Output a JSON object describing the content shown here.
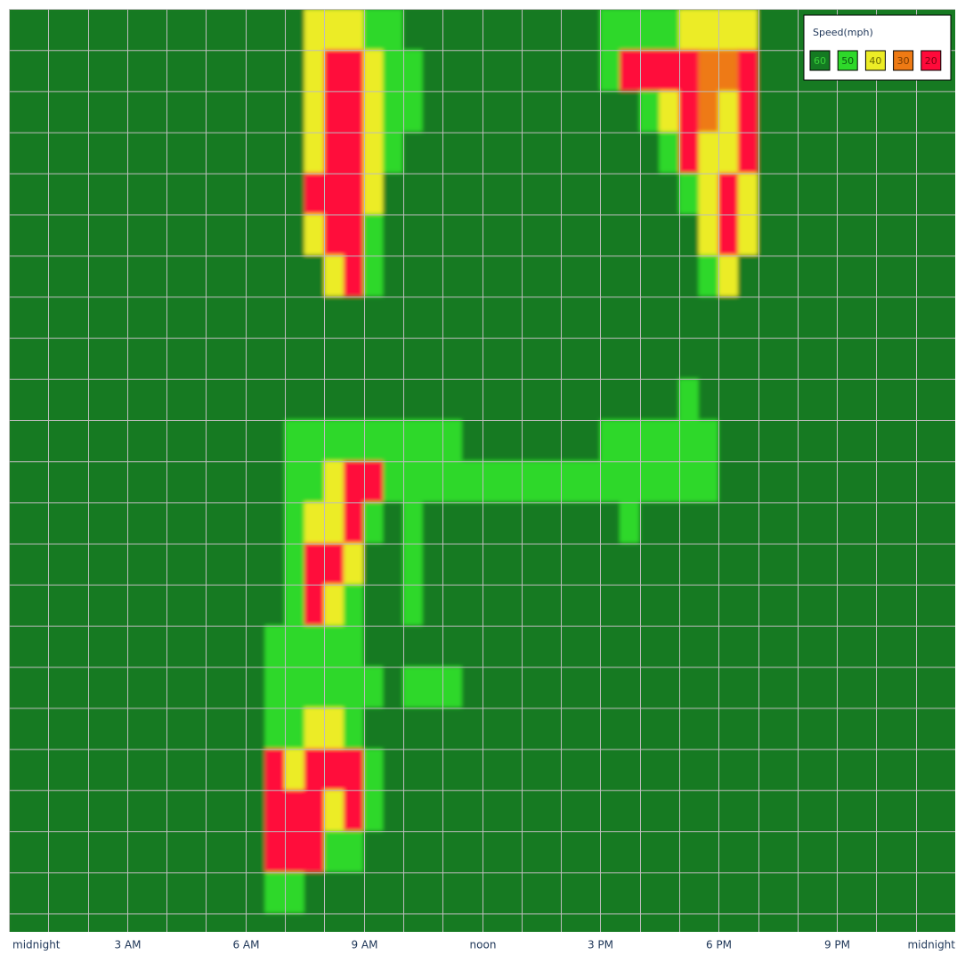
{
  "chart_data": {
    "type": "heatmap",
    "xlim": [
      0,
      24
    ],
    "xticks": [
      {
        "value": 0,
        "label": "midnight"
      },
      {
        "value": 3,
        "label": "3 AM"
      },
      {
        "value": 6,
        "label": "6 AM"
      },
      {
        "value": 9,
        "label": "9 AM"
      },
      {
        "value": 12,
        "label": "noon"
      },
      {
        "value": 15,
        "label": "3 PM"
      },
      {
        "value": 18,
        "label": "6 PM"
      },
      {
        "value": 21,
        "label": "9 PM"
      },
      {
        "value": 24,
        "label": "midnight"
      }
    ],
    "xminor": [
      1,
      2,
      4,
      5,
      7,
      8,
      10,
      11,
      13,
      14,
      16,
      17,
      19,
      20,
      22,
      23
    ],
    "x": [
      0,
      0.5,
      1,
      1.5,
      2,
      2.5,
      3,
      3.5,
      4,
      4.5,
      5,
      5.5,
      6,
      6.5,
      7,
      7.5,
      8,
      8.5,
      9,
      9.5,
      10,
      10.5,
      11,
      11.5,
      12,
      12.5,
      13,
      13.5,
      14,
      14.5,
      15,
      15.5,
      16,
      16.5,
      17,
      17.5,
      18,
      18.5,
      19,
      19.5,
      20,
      20.5,
      21,
      21.5,
      22,
      22.5,
      23,
      23.5
    ],
    "legend": {
      "title": "Speed(mph)",
      "items": [
        {
          "value": 60,
          "color": "#147a22"
        },
        {
          "value": 50,
          "color": "#2ed82a"
        },
        {
          "value": 40,
          "color": "#ecec26"
        },
        {
          "value": 30,
          "color": "#ee7a14"
        },
        {
          "value": 20,
          "color": "#ff0a3a"
        }
      ]
    },
    "z": [
      [
        60,
        60,
        60,
        60,
        60,
        60,
        60,
        60,
        60,
        60,
        60,
        60,
        60,
        60,
        60,
        40,
        40,
        40,
        50,
        50,
        60,
        60,
        60,
        60,
        60,
        60,
        60,
        60,
        60,
        60,
        50,
        50,
        50,
        50,
        40,
        40,
        40,
        40,
        60,
        60,
        60,
        60,
        60,
        60,
        60,
        60,
        60,
        60
      ],
      [
        60,
        60,
        60,
        60,
        60,
        60,
        60,
        60,
        60,
        60,
        60,
        60,
        60,
        60,
        60,
        40,
        20,
        20,
        40,
        50,
        50,
        60,
        60,
        60,
        60,
        60,
        60,
        60,
        60,
        60,
        50,
        20,
        20,
        20,
        20,
        30,
        30,
        20,
        60,
        60,
        60,
        60,
        60,
        60,
        60,
        60,
        60,
        60
      ],
      [
        60,
        60,
        60,
        60,
        60,
        60,
        60,
        60,
        60,
        60,
        60,
        60,
        60,
        60,
        60,
        40,
        20,
        20,
        40,
        50,
        50,
        60,
        60,
        60,
        60,
        60,
        60,
        60,
        60,
        60,
        60,
        60,
        50,
        40,
        20,
        30,
        40,
        20,
        60,
        60,
        60,
        60,
        60,
        60,
        60,
        60,
        60,
        60
      ],
      [
        60,
        60,
        60,
        60,
        60,
        60,
        60,
        60,
        60,
        60,
        60,
        60,
        60,
        60,
        60,
        40,
        20,
        20,
        40,
        50,
        60,
        60,
        60,
        60,
        60,
        60,
        60,
        60,
        60,
        60,
        60,
        60,
        60,
        50,
        20,
        40,
        40,
        20,
        60,
        60,
        60,
        60,
        60,
        60,
        60,
        60,
        60,
        60
      ],
      [
        60,
        60,
        60,
        60,
        60,
        60,
        60,
        60,
        60,
        60,
        60,
        60,
        60,
        60,
        60,
        20,
        20,
        20,
        40,
        60,
        60,
        60,
        60,
        60,
        60,
        60,
        60,
        60,
        60,
        60,
        60,
        60,
        60,
        60,
        50,
        40,
        20,
        40,
        60,
        60,
        60,
        60,
        60,
        60,
        60,
        60,
        60,
        60
      ],
      [
        60,
        60,
        60,
        60,
        60,
        60,
        60,
        60,
        60,
        60,
        60,
        60,
        60,
        60,
        60,
        40,
        20,
        20,
        50,
        60,
        60,
        60,
        60,
        60,
        60,
        60,
        60,
        60,
        60,
        60,
        60,
        60,
        60,
        60,
        60,
        40,
        20,
        40,
        60,
        60,
        60,
        60,
        60,
        60,
        60,
        60,
        60,
        60
      ],
      [
        60,
        60,
        60,
        60,
        60,
        60,
        60,
        60,
        60,
        60,
        60,
        60,
        60,
        60,
        60,
        60,
        40,
        20,
        50,
        60,
        60,
        60,
        60,
        60,
        60,
        60,
        60,
        60,
        60,
        60,
        60,
        60,
        60,
        60,
        60,
        50,
        40,
        60,
        60,
        60,
        60,
        60,
        60,
        60,
        60,
        60,
        60,
        60
      ],
      [
        60,
        60,
        60,
        60,
        60,
        60,
        60,
        60,
        60,
        60,
        60,
        60,
        60,
        60,
        60,
        60,
        60,
        60,
        60,
        60,
        60,
        60,
        60,
        60,
        60,
        60,
        60,
        60,
        60,
        60,
        60,
        60,
        60,
        60,
        60,
        60,
        60,
        60,
        60,
        60,
        60,
        60,
        60,
        60,
        60,
        60,
        60,
        60
      ],
      [
        60,
        60,
        60,
        60,
        60,
        60,
        60,
        60,
        60,
        60,
        60,
        60,
        60,
        60,
        60,
        60,
        60,
        60,
        60,
        60,
        60,
        60,
        60,
        60,
        60,
        60,
        60,
        60,
        60,
        60,
        60,
        60,
        60,
        60,
        60,
        60,
        60,
        60,
        60,
        60,
        60,
        60,
        60,
        60,
        60,
        60,
        60,
        60
      ],
      [
        60,
        60,
        60,
        60,
        60,
        60,
        60,
        60,
        60,
        60,
        60,
        60,
        60,
        60,
        60,
        60,
        60,
        60,
        60,
        60,
        60,
        60,
        60,
        60,
        60,
        60,
        60,
        60,
        60,
        60,
        60,
        60,
        60,
        60,
        50,
        60,
        60,
        60,
        60,
        60,
        60,
        60,
        60,
        60,
        60,
        60,
        60,
        60
      ],
      [
        60,
        60,
        60,
        60,
        60,
        60,
        60,
        60,
        60,
        60,
        60,
        60,
        60,
        60,
        50,
        50,
        50,
        50,
        50,
        50,
        50,
        50,
        50,
        60,
        60,
        60,
        60,
        60,
        60,
        60,
        50,
        50,
        50,
        50,
        50,
        50,
        60,
        60,
        60,
        60,
        60,
        60,
        60,
        60,
        60,
        60,
        60,
        60
      ],
      [
        60,
        60,
        60,
        60,
        60,
        60,
        60,
        60,
        60,
        60,
        60,
        60,
        60,
        60,
        50,
        50,
        40,
        20,
        20,
        50,
        50,
        50,
        50,
        50,
        50,
        50,
        50,
        50,
        50,
        50,
        50,
        50,
        50,
        50,
        50,
        50,
        60,
        60,
        60,
        60,
        60,
        60,
        60,
        60,
        60,
        60,
        60,
        60
      ],
      [
        60,
        60,
        60,
        60,
        60,
        60,
        60,
        60,
        60,
        60,
        60,
        60,
        60,
        60,
        50,
        40,
        40,
        20,
        50,
        60,
        50,
        60,
        60,
        60,
        60,
        60,
        60,
        60,
        60,
        60,
        60,
        50,
        60,
        60,
        60,
        60,
        60,
        60,
        60,
        60,
        60,
        60,
        60,
        60,
        60,
        60,
        60,
        60
      ],
      [
        60,
        60,
        60,
        60,
        60,
        60,
        60,
        60,
        60,
        60,
        60,
        60,
        60,
        60,
        50,
        20,
        20,
        40,
        60,
        60,
        50,
        60,
        60,
        60,
        60,
        60,
        60,
        60,
        60,
        60,
        60,
        60,
        60,
        60,
        60,
        60,
        60,
        60,
        60,
        60,
        60,
        60,
        60,
        60,
        60,
        60,
        60,
        60
      ],
      [
        60,
        60,
        60,
        60,
        60,
        60,
        60,
        60,
        60,
        60,
        60,
        60,
        60,
        60,
        50,
        20,
        40,
        50,
        60,
        60,
        50,
        60,
        60,
        60,
        60,
        60,
        60,
        60,
        60,
        60,
        60,
        60,
        60,
        60,
        60,
        60,
        60,
        60,
        60,
        60,
        60,
        60,
        60,
        60,
        60,
        60,
        60,
        60
      ],
      [
        60,
        60,
        60,
        60,
        60,
        60,
        60,
        60,
        60,
        60,
        60,
        60,
        60,
        50,
        50,
        50,
        50,
        50,
        60,
        60,
        60,
        60,
        60,
        60,
        60,
        60,
        60,
        60,
        60,
        60,
        60,
        60,
        60,
        60,
        60,
        60,
        60,
        60,
        60,
        60,
        60,
        60,
        60,
        60,
        60,
        60,
        60,
        60
      ],
      [
        60,
        60,
        60,
        60,
        60,
        60,
        60,
        60,
        60,
        60,
        60,
        60,
        60,
        50,
        50,
        50,
        50,
        50,
        50,
        60,
        50,
        50,
        50,
        60,
        60,
        60,
        60,
        60,
        60,
        60,
        60,
        60,
        60,
        60,
        60,
        60,
        60,
        60,
        60,
        60,
        60,
        60,
        60,
        60,
        60,
        60,
        60,
        60
      ],
      [
        60,
        60,
        60,
        60,
        60,
        60,
        60,
        60,
        60,
        60,
        60,
        60,
        60,
        50,
        50,
        40,
        40,
        50,
        60,
        60,
        60,
        60,
        60,
        60,
        60,
        60,
        60,
        60,
        60,
        60,
        60,
        60,
        60,
        60,
        60,
        60,
        60,
        60,
        60,
        60,
        60,
        60,
        60,
        60,
        60,
        60,
        60,
        60
      ],
      [
        60,
        60,
        60,
        60,
        60,
        60,
        60,
        60,
        60,
        60,
        60,
        60,
        60,
        20,
        40,
        20,
        20,
        20,
        50,
        60,
        60,
        60,
        60,
        60,
        60,
        60,
        60,
        60,
        60,
        60,
        60,
        60,
        60,
        60,
        60,
        60,
        60,
        60,
        60,
        60,
        60,
        60,
        60,
        60,
        60,
        60,
        60,
        60
      ],
      [
        60,
        60,
        60,
        60,
        60,
        60,
        60,
        60,
        60,
        60,
        60,
        60,
        60,
        20,
        20,
        20,
        40,
        20,
        50,
        60,
        60,
        60,
        60,
        60,
        60,
        60,
        60,
        60,
        60,
        60,
        60,
        60,
        60,
        60,
        60,
        60,
        60,
        60,
        60,
        60,
        60,
        60,
        60,
        60,
        60,
        60,
        60,
        60
      ],
      [
        60,
        60,
        60,
        60,
        60,
        60,
        60,
        60,
        60,
        60,
        60,
        60,
        60,
        20,
        20,
        20,
        50,
        50,
        60,
        60,
        60,
        60,
        60,
        60,
        60,
        60,
        60,
        60,
        60,
        60,
        60,
        60,
        60,
        60,
        60,
        60,
        60,
        60,
        60,
        60,
        60,
        60,
        60,
        60,
        60,
        60,
        60,
        60
      ],
      [
        60,
        60,
        60,
        60,
        60,
        60,
        60,
        60,
        60,
        60,
        60,
        60,
        60,
        50,
        50,
        60,
        60,
        60,
        60,
        60,
        60,
        60,
        60,
        60,
        60,
        60,
        60,
        60,
        60,
        60,
        60,
        60,
        60,
        60,
        60,
        60,
        60,
        60,
        60,
        60,
        60,
        60,
        60,
        60,
        60,
        60,
        60,
        60
      ],
      [
        60,
        60,
        60,
        60,
        60,
        60,
        60,
        60,
        60,
        60,
        60,
        60,
        60,
        60,
        60,
        60,
        60,
        60,
        60,
        60,
        60,
        60,
        60,
        60,
        60,
        60,
        60,
        60,
        60,
        60,
        60,
        60,
        60,
        60,
        60,
        60,
        60,
        60,
        60,
        60,
        60,
        60,
        60,
        60,
        60,
        60,
        60,
        60
      ]
    ]
  }
}
